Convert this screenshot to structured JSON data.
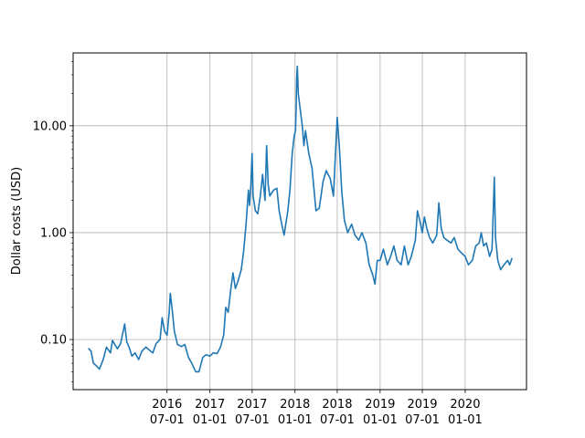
{
  "chart_data": {
    "type": "line",
    "title": "",
    "xlabel": "",
    "ylabel": "Dollar costs (USD)",
    "y_scale": "log",
    "ylim": [
      0.034,
      48
    ],
    "xlim": [
      "2015-05-25",
      "2020-09-20"
    ],
    "grid": true,
    "line_color": "#1f77b4",
    "x_ticks": [
      {
        "date": "2016-07-01",
        "line1": "2016",
        "line2": "07-01"
      },
      {
        "date": "2017-01-01",
        "line1": "2017",
        "line2": "01-01"
      },
      {
        "date": "2017-07-01",
        "line1": "2017",
        "line2": "07-01"
      },
      {
        "date": "2018-01-01",
        "line1": "2018",
        "line2": "01-01"
      },
      {
        "date": "2018-07-01",
        "line1": "2018",
        "line2": "07-01"
      },
      {
        "date": "2019-01-01",
        "line1": "2019",
        "line2": "01-01"
      },
      {
        "date": "2019-07-01",
        "line1": "2019",
        "line2": "07-01"
      },
      {
        "date": "2020-01-01",
        "line1": "2020",
        "line2": "01-01"
      }
    ],
    "y_ticks": [
      {
        "value": 0.1,
        "label": "0.10"
      },
      {
        "value": 1,
        "label": "1.00"
      },
      {
        "value": 10,
        "label": "10.00"
      }
    ],
    "series": [
      {
        "points": [
          [
            "2015-07-30",
            0.083
          ],
          [
            "2015-08-10",
            0.078
          ],
          [
            "2015-08-20",
            0.06
          ],
          [
            "2015-09-01",
            0.057
          ],
          [
            "2015-09-15",
            0.053
          ],
          [
            "2015-10-01",
            0.065
          ],
          [
            "2015-10-15",
            0.085
          ],
          [
            "2015-11-01",
            0.075
          ],
          [
            "2015-11-10",
            0.098
          ],
          [
            "2015-11-20",
            0.09
          ],
          [
            "2015-12-01",
            0.082
          ],
          [
            "2015-12-15",
            0.092
          ],
          [
            "2016-01-01",
            0.14
          ],
          [
            "2016-01-10",
            0.095
          ],
          [
            "2016-01-20",
            0.085
          ],
          [
            "2016-02-01",
            0.07
          ],
          [
            "2016-02-15",
            0.075
          ],
          [
            "2016-03-01",
            0.065
          ],
          [
            "2016-03-15",
            0.078
          ],
          [
            "2016-04-01",
            0.085
          ],
          [
            "2016-04-15",
            0.08
          ],
          [
            "2016-05-01",
            0.075
          ],
          [
            "2016-05-15",
            0.092
          ],
          [
            "2016-06-01",
            0.1
          ],
          [
            "2016-06-10",
            0.16
          ],
          [
            "2016-06-20",
            0.12
          ],
          [
            "2016-07-01",
            0.11
          ],
          [
            "2016-07-10",
            0.18
          ],
          [
            "2016-07-15",
            0.27
          ],
          [
            "2016-07-22",
            0.2
          ],
          [
            "2016-08-01",
            0.12
          ],
          [
            "2016-08-15",
            0.09
          ],
          [
            "2016-09-01",
            0.086
          ],
          [
            "2016-09-15",
            0.09
          ],
          [
            "2016-10-01",
            0.068
          ],
          [
            "2016-10-15",
            0.06
          ],
          [
            "2016-11-01",
            0.05
          ],
          [
            "2016-11-15",
            0.05
          ],
          [
            "2016-12-01",
            0.068
          ],
          [
            "2016-12-15",
            0.072
          ],
          [
            "2017-01-01",
            0.07
          ],
          [
            "2017-01-15",
            0.075
          ],
          [
            "2017-02-01",
            0.074
          ],
          [
            "2017-02-15",
            0.085
          ],
          [
            "2017-03-01",
            0.11
          ],
          [
            "2017-03-10",
            0.2
          ],
          [
            "2017-03-20",
            0.18
          ],
          [
            "2017-04-01",
            0.3
          ],
          [
            "2017-04-10",
            0.42
          ],
          [
            "2017-04-20",
            0.3
          ],
          [
            "2017-05-01",
            0.35
          ],
          [
            "2017-05-15",
            0.45
          ],
          [
            "2017-05-25",
            0.65
          ],
          [
            "2017-06-05",
            1.2
          ],
          [
            "2017-06-15",
            2.5
          ],
          [
            "2017-06-20",
            1.8
          ],
          [
            "2017-06-25",
            2.6
          ],
          [
            "2017-07-01",
            5.5
          ],
          [
            "2017-07-05",
            2.2
          ],
          [
            "2017-07-15",
            1.6
          ],
          [
            "2017-07-25",
            1.5
          ],
          [
            "2017-08-05",
            2.2
          ],
          [
            "2017-08-15",
            3.5
          ],
          [
            "2017-08-25",
            2.0
          ],
          [
            "2017-09-01",
            6.5
          ],
          [
            "2017-09-08",
            2.8
          ],
          [
            "2017-09-15",
            2.2
          ],
          [
            "2017-10-01",
            2.5
          ],
          [
            "2017-10-15",
            2.6
          ],
          [
            "2017-10-25",
            1.6
          ],
          [
            "2017-11-05",
            1.2
          ],
          [
            "2017-11-15",
            0.95
          ],
          [
            "2017-11-25",
            1.3
          ],
          [
            "2017-12-01",
            1.6
          ],
          [
            "2017-12-10",
            2.5
          ],
          [
            "2017-12-20",
            5.5
          ],
          [
            "2017-12-28",
            8.0
          ],
          [
            "2018-01-03",
            9.0
          ],
          [
            "2018-01-06",
            15.0
          ],
          [
            "2018-01-08",
            28.0
          ],
          [
            "2018-01-11",
            36.0
          ],
          [
            "2018-01-15",
            20.0
          ],
          [
            "2018-01-22",
            15.0
          ],
          [
            "2018-02-01",
            10.0
          ],
          [
            "2018-02-08",
            6.5
          ],
          [
            "2018-02-15",
            9.0
          ],
          [
            "2018-03-01",
            5.5
          ],
          [
            "2018-03-15",
            4.0
          ],
          [
            "2018-04-01",
            1.6
          ],
          [
            "2018-04-15",
            1.7
          ],
          [
            "2018-05-01",
            3.0
          ],
          [
            "2018-05-15",
            3.8
          ],
          [
            "2018-06-01",
            3.2
          ],
          [
            "2018-06-15",
            2.2
          ],
          [
            "2018-07-01",
            12.0
          ],
          [
            "2018-07-10",
            6.5
          ],
          [
            "2018-07-20",
            2.5
          ],
          [
            "2018-08-01",
            1.3
          ],
          [
            "2018-08-15",
            1.0
          ],
          [
            "2018-09-01",
            1.2
          ],
          [
            "2018-09-15",
            0.95
          ],
          [
            "2018-10-01",
            0.85
          ],
          [
            "2018-10-15",
            1.0
          ],
          [
            "2018-11-01",
            0.8
          ],
          [
            "2018-11-15",
            0.5
          ],
          [
            "2018-12-01",
            0.4
          ],
          [
            "2018-12-10",
            0.33
          ],
          [
            "2018-12-20",
            0.55
          ],
          [
            "2019-01-01",
            0.55
          ],
          [
            "2019-01-15",
            0.7
          ],
          [
            "2019-02-01",
            0.5
          ],
          [
            "2019-02-15",
            0.6
          ],
          [
            "2019-03-01",
            0.75
          ],
          [
            "2019-03-15",
            0.55
          ],
          [
            "2019-04-01",
            0.5
          ],
          [
            "2019-04-15",
            0.75
          ],
          [
            "2019-05-01",
            0.5
          ],
          [
            "2019-05-15",
            0.6
          ],
          [
            "2019-06-01",
            0.85
          ],
          [
            "2019-06-10",
            1.6
          ],
          [
            "2019-06-20",
            1.3
          ],
          [
            "2019-07-01",
            1.0
          ],
          [
            "2019-07-10",
            1.4
          ],
          [
            "2019-07-20",
            1.1
          ],
          [
            "2019-08-01",
            0.9
          ],
          [
            "2019-08-15",
            0.8
          ],
          [
            "2019-09-01",
            0.95
          ],
          [
            "2019-09-10",
            1.9
          ],
          [
            "2019-09-20",
            1.1
          ],
          [
            "2019-10-01",
            0.9
          ],
          [
            "2019-10-15",
            0.85
          ],
          [
            "2019-11-01",
            0.8
          ],
          [
            "2019-11-15",
            0.9
          ],
          [
            "2019-12-01",
            0.7
          ],
          [
            "2019-12-15",
            0.65
          ],
          [
            "2020-01-01",
            0.6
          ],
          [
            "2020-01-15",
            0.5
          ],
          [
            "2020-02-01",
            0.55
          ],
          [
            "2020-02-15",
            0.75
          ],
          [
            "2020-03-01",
            0.8
          ],
          [
            "2020-03-10",
            1.0
          ],
          [
            "2020-03-20",
            0.75
          ],
          [
            "2020-04-01",
            0.8
          ],
          [
            "2020-04-15",
            0.6
          ],
          [
            "2020-04-25",
            0.7
          ],
          [
            "2020-05-05",
            3.3
          ],
          [
            "2020-05-10",
            0.9
          ],
          [
            "2020-05-20",
            0.55
          ],
          [
            "2020-06-01",
            0.45
          ],
          [
            "2020-06-15",
            0.5
          ],
          [
            "2020-07-01",
            0.55
          ],
          [
            "2020-07-10",
            0.5
          ],
          [
            "2020-07-20",
            0.58
          ]
        ]
      }
    ]
  }
}
